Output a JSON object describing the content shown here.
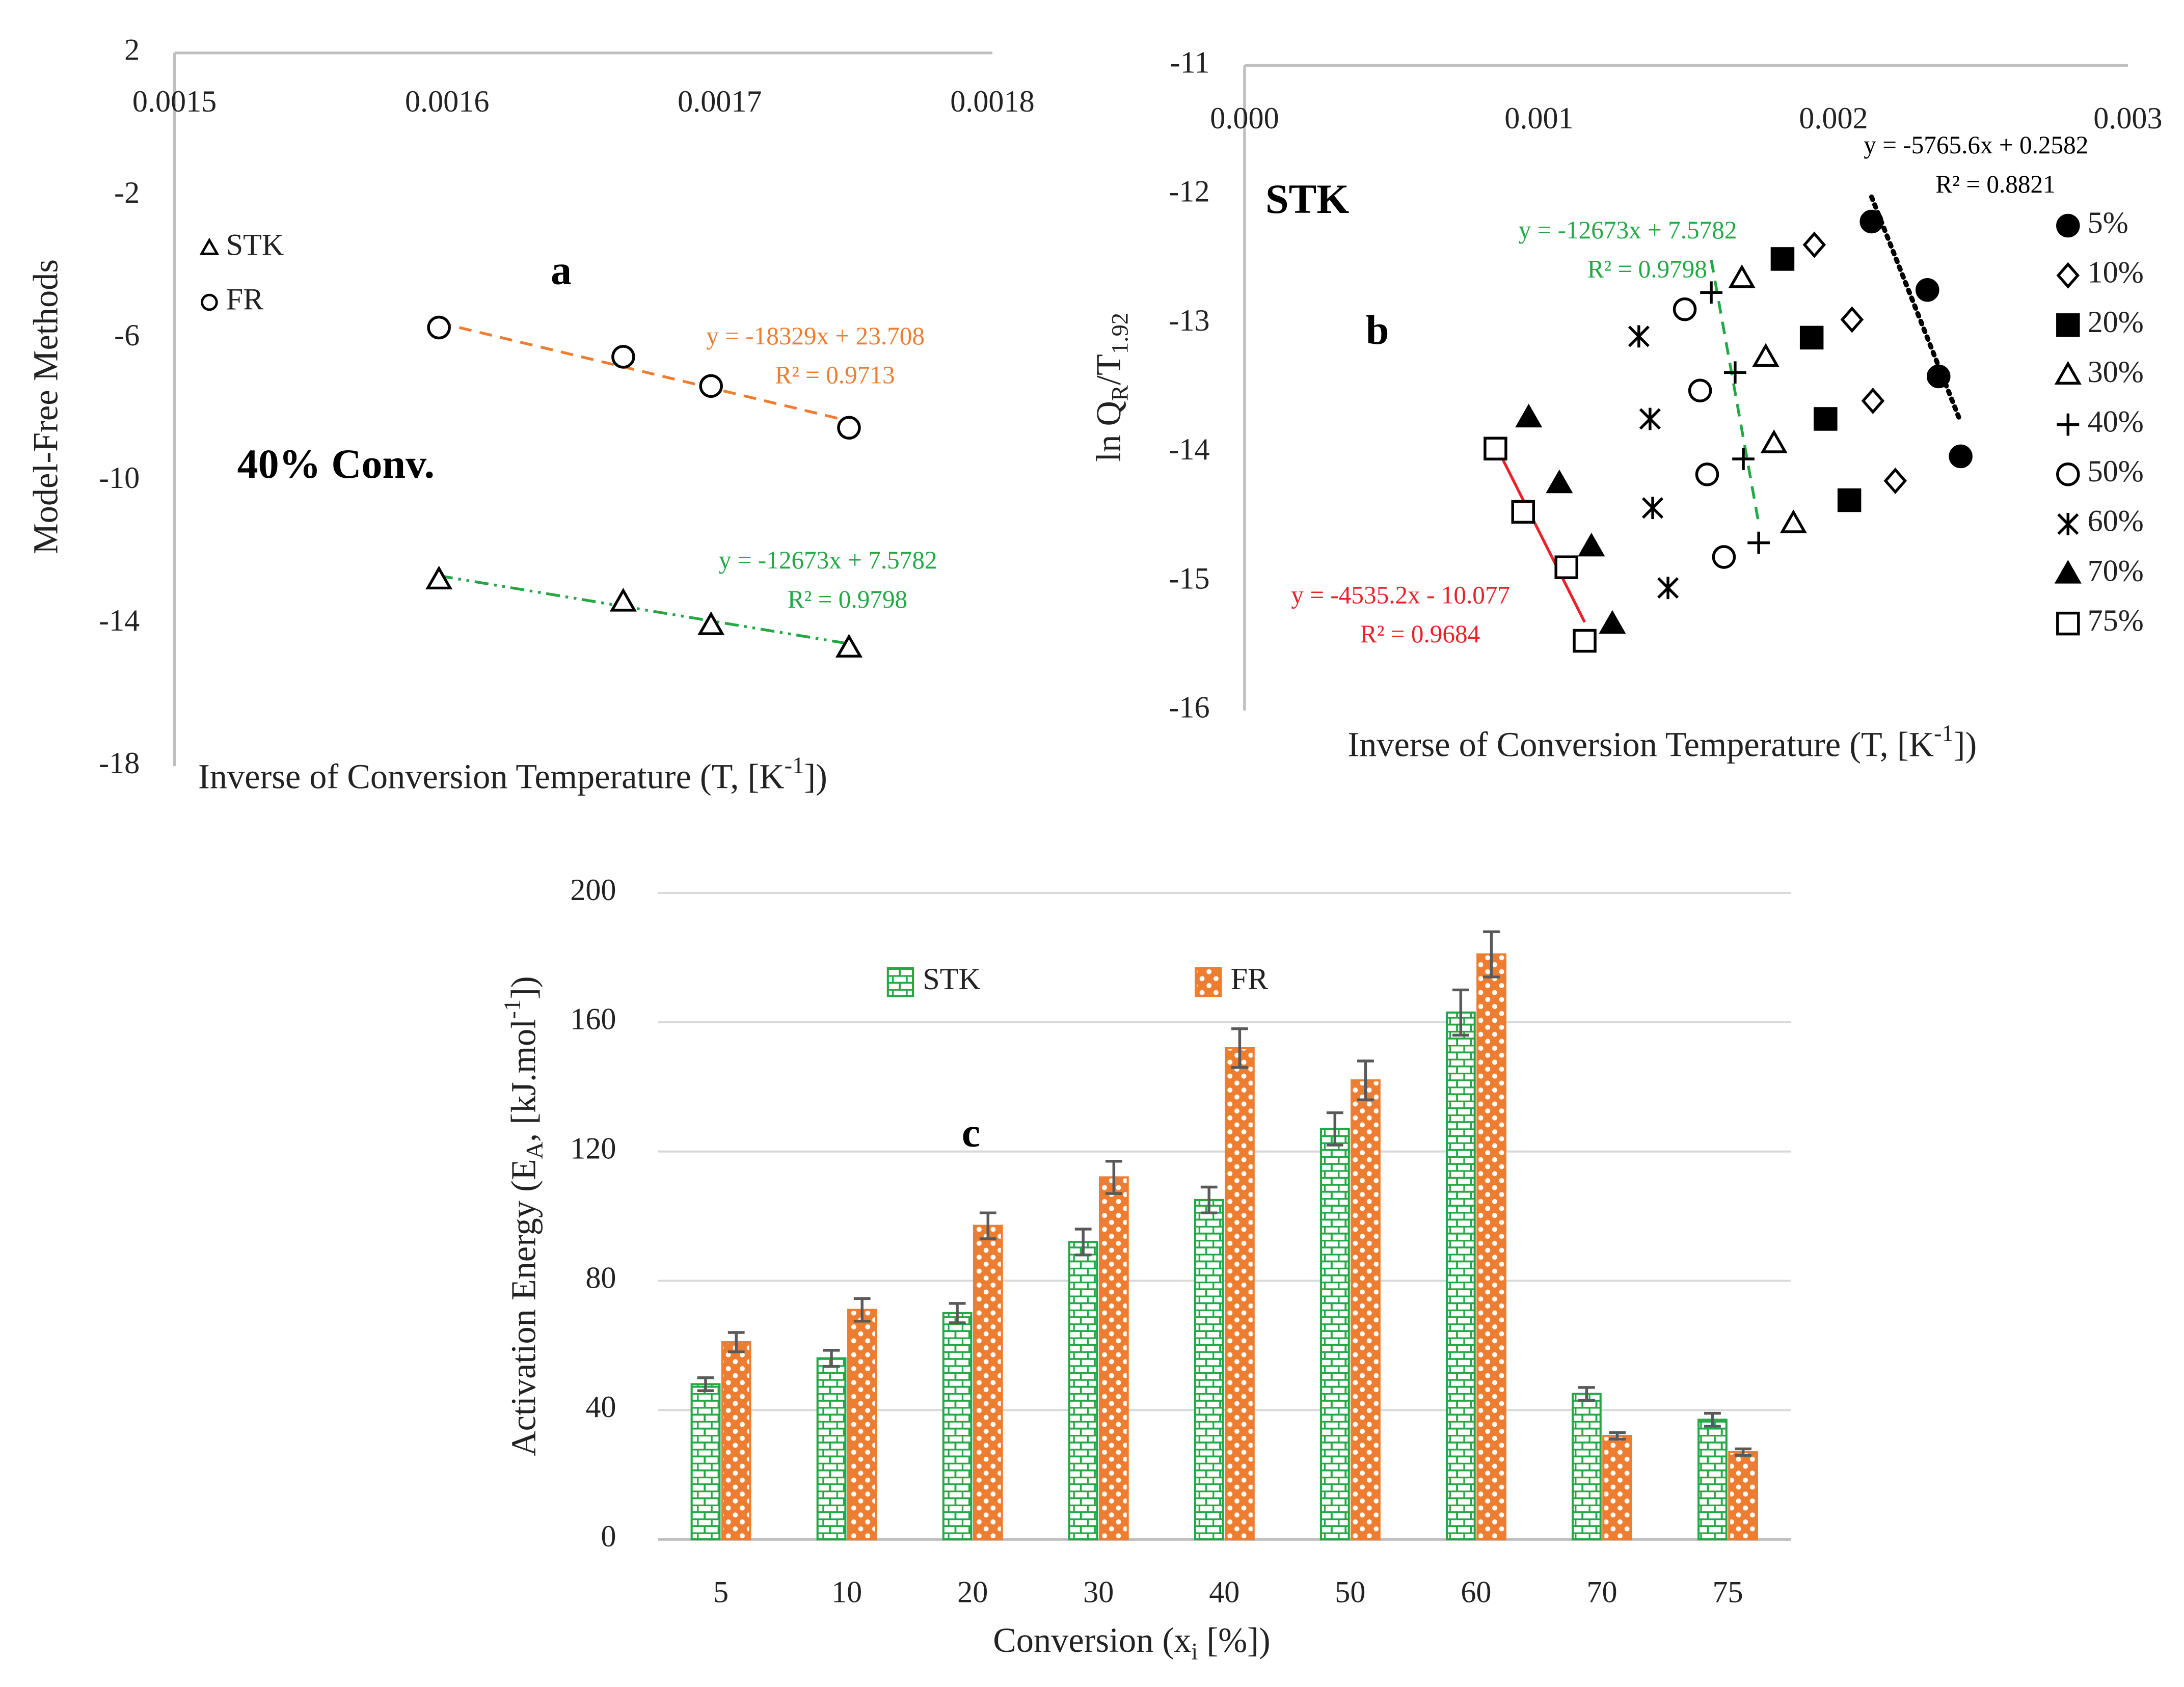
{
  "chart_data": [
    {
      "type": "scatter",
      "label": "a",
      "annotation": "40% Conv.",
      "xlim": [
        0.0015,
        0.0018
      ],
      "xticks": [
        0.0015,
        0.0016,
        0.0017,
        0.0018
      ],
      "ylim": [
        -18,
        2
      ],
      "yticks": [
        2,
        -2,
        -6,
        -10,
        -14,
        -18
      ],
      "ylabel": [
        "Model-Free Methods"
      ],
      "xlabel": [
        "Inverse of Conversion Temperature (T, [K",
        "-1",
        "])"
      ],
      "series": [
        {
          "name": "STK",
          "marker": "triangle",
          "color": "#000000",
          "x": [
            0.001597,
            0.0016646,
            0.0016968,
            0.0017474
          ],
          "values": [
            -12.77,
            -13.39,
            -14.05,
            -14.68
          ],
          "trendline": {
            "slope": -12673,
            "intercept": 7.5782,
            "color": "#22a845",
            "dash": "dash-dot-dot",
            "equation": "y = -12673x + 7.5782",
            "r2": "R² = 0.9798"
          }
        },
        {
          "name": "FR",
          "marker": "circle",
          "color": "#000000",
          "x": [
            0.001597,
            0.0016646,
            0.0016968,
            0.0017474
          ],
          "values": [
            -5.7,
            -6.52,
            -7.34,
            -8.51
          ],
          "trendline": {
            "slope": -18329,
            "intercept": 23.708,
            "color": "#ed7d31",
            "dash": "dash",
            "equation": "y = -18329x + 23.708",
            "r2": "R² = 0.9713"
          }
        }
      ]
    },
    {
      "type": "scatter",
      "label": "b",
      "annotation": "STK",
      "xlim": [
        0,
        0.003
      ],
      "xticks": [
        {
          "value": 0,
          "label": "0.000"
        },
        {
          "value": 0.001,
          "label": "0.001"
        },
        {
          "value": 0.002,
          "label": "0.002"
        },
        {
          "value": 0.003,
          "label": "0.003"
        }
      ],
      "ylim": [
        -16,
        -11
      ],
      "yticks": [
        -11,
        -12,
        -13,
        -14,
        -15,
        -16
      ],
      "ylabel": [
        "ln Q",
        "R",
        "/T",
        "1.92"
      ],
      "xlabel": [
        "Inverse of Conversion Temperature (T, [K",
        "-1",
        "])"
      ],
      "series": [
        {
          "name": "5%",
          "marker": "filled-circle",
          "color": "#000000",
          "x": [
            0.0021294,
            0.002319,
            0.002357,
            0.002432
          ],
          "values": [
            -12.21,
            -12.74,
            -13.41,
            -14.03
          ],
          "trendline": {
            "slope": -5765.6,
            "intercept": 0.2582,
            "color": "#000000",
            "dash": "dot",
            "equation": "y = -5765.6x + 0.2582",
            "r2": "R² = 0.8821"
          }
        },
        {
          "name": "10%",
          "marker": "diamond",
          "color": "#000000",
          "x": [
            0.001935,
            0.002063,
            0.002134,
            0.00221
          ],
          "values": [
            -12.39,
            -12.97,
            -13.6,
            -14.22
          ]
        },
        {
          "name": "20%",
          "marker": "filled-square",
          "color": "#000000",
          "x": [
            0.001827,
            0.001926,
            0.001973,
            0.002054
          ],
          "values": [
            -12.5,
            -13.11,
            -13.74,
            -14.37
          ]
        },
        {
          "name": "30%",
          "marker": "triangle",
          "color": "#000000",
          "x": [
            0.001689,
            0.00177,
            0.001798,
            0.001864
          ],
          "values": [
            -12.65,
            -13.26,
            -13.93,
            -14.55
          ]
        },
        {
          "name": "40%",
          "marker": "plus",
          "color": "#000000",
          "x": [
            0.001585,
            0.001666,
            0.001694,
            0.001746
          ],
          "values": [
            -12.76,
            -13.38,
            -14.05,
            -14.7
          ],
          "trendline": {
            "slope": -12673,
            "intercept": 7.5782,
            "color": "#22a845",
            "dash": "dash",
            "equation": "y = -12673x + 7.5782",
            "r2": "R² = 0.9798"
          }
        },
        {
          "name": "50%",
          "marker": "circle",
          "color": "#000000",
          "x": [
            0.001495,
            0.001547,
            0.001571,
            0.001628
          ],
          "values": [
            -12.89,
            -13.52,
            -14.17,
            -14.81
          ]
        },
        {
          "name": "60%",
          "marker": "asterisk",
          "color": "#000000",
          "x": [
            0.001339,
            0.001377,
            0.001386,
            0.001438
          ],
          "values": [
            -13.1,
            -13.74,
            -14.43,
            -15.05
          ]
        },
        {
          "name": "70%",
          "marker": "filled-triangle",
          "color": "#000000",
          "x": [
            0.000965,
            0.001069,
            0.001178,
            0.001249
          ],
          "values": [
            -13.73,
            -14.24,
            -14.73,
            -15.33
          ]
        },
        {
          "name": "75%",
          "marker": "square",
          "color": "#000000",
          "x": [
            0.000852,
            0.000946,
            0.001093,
            0.001155
          ],
          "values": [
            -13.97,
            -14.46,
            -14.89,
            -15.46
          ],
          "trendline": {
            "slope": -4535.2,
            "intercept": -10.077,
            "color": "#e8212a",
            "dash": "solid",
            "equation": "y = -4535.2x - 10.077",
            "r2": "R² = 0.9684"
          }
        }
      ]
    },
    {
      "type": "bar",
      "label": "c",
      "categories": [
        "5",
        "10",
        "20",
        "30",
        "40",
        "50",
        "60",
        "70",
        "75"
      ],
      "ylim": [
        0,
        200
      ],
      "yticks": [
        0,
        40,
        80,
        120,
        160,
        200
      ],
      "grid": true,
      "ylabel": [
        "Activation Energy (E",
        "A",
        ", [kJ.mol",
        "-1",
        "])"
      ],
      "xlabel": [
        "Conversion (x",
        "i",
        " [%])"
      ],
      "series": [
        {
          "name": "STK",
          "color": "#22a845",
          "pattern": "brick",
          "values": [
            48,
            56,
            70,
            92,
            105,
            127,
            163,
            45,
            37
          ],
          "errors": [
            2,
            2.5,
            3,
            4,
            4,
            5,
            7,
            2,
            2
          ]
        },
        {
          "name": "FR",
          "color": "#ed7d31",
          "pattern": "dots",
          "values": [
            61,
            71,
            97,
            112,
            152,
            142,
            181,
            32,
            27
          ],
          "errors": [
            3,
            3.5,
            4,
            5,
            6,
            6,
            7,
            1,
            1
          ]
        }
      ]
    }
  ]
}
